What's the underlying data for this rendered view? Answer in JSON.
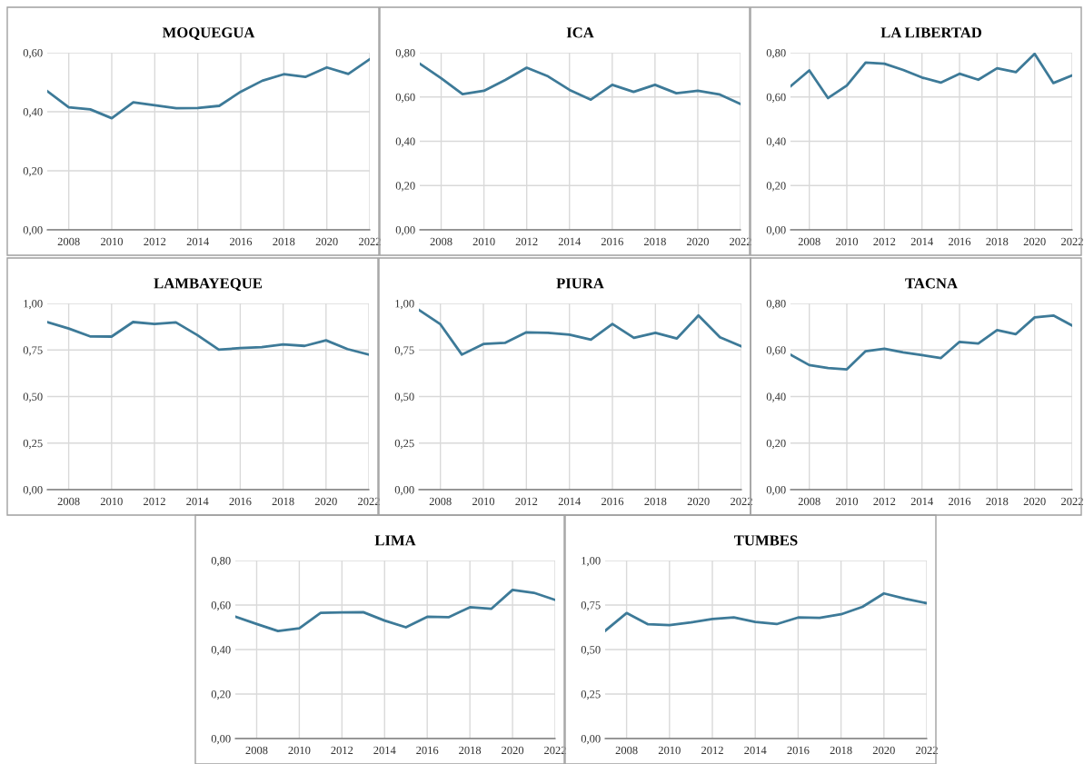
{
  "chart_data": [
    {
      "type": "line",
      "title": "MOQUEGUA",
      "x": [
        2007,
        2008,
        2009,
        2010,
        2011,
        2012,
        2013,
        2014,
        2015,
        2016,
        2017,
        2018,
        2019,
        2020,
        2021,
        2022
      ],
      "series": [
        {
          "color": "#3d7a98",
          "values": [
            0.47,
            0.415,
            0.408,
            0.378,
            0.432,
            0.422,
            0.412,
            0.413,
            0.42,
            0.468,
            0.505,
            0.527,
            0.518,
            0.55,
            0.528,
            0.578
          ]
        }
      ],
      "xlim": [
        2007,
        2022
      ],
      "xticks": [
        2008,
        2010,
        2012,
        2014,
        2016,
        2018,
        2020,
        2022
      ],
      "ylim": [
        0,
        0.6
      ],
      "yticks": [
        {
          "value": 0,
          "label": "0,00"
        },
        {
          "value": 0.2,
          "label": "0,20"
        },
        {
          "value": 0.4,
          "label": "0,40"
        },
        {
          "value": 0.6,
          "label": "0,60"
        }
      ],
      "grid": true
    },
    {
      "type": "line",
      "title": "ICA",
      "x": [
        2007,
        2008,
        2009,
        2010,
        2011,
        2012,
        2013,
        2014,
        2015,
        2016,
        2017,
        2018,
        2019,
        2020,
        2021,
        2022
      ],
      "series": [
        {
          "color": "#3d7a98",
          "values": [
            0.75,
            0.685,
            0.613,
            0.628,
            0.677,
            0.732,
            0.693,
            0.632,
            0.588,
            0.655,
            0.623,
            0.655,
            0.617,
            0.628,
            0.612,
            0.568
          ]
        }
      ],
      "xlim": [
        2007,
        2022
      ],
      "xticks": [
        2008,
        2010,
        2012,
        2014,
        2016,
        2018,
        2020,
        2022
      ],
      "ylim": [
        0,
        0.8
      ],
      "yticks": [
        {
          "value": 0,
          "label": "0,00"
        },
        {
          "value": 0.2,
          "label": "0,20"
        },
        {
          "value": 0.4,
          "label": "0,40"
        },
        {
          "value": 0.6,
          "label": "0,60"
        },
        {
          "value": 0.8,
          "label": "0,80"
        }
      ],
      "grid": true
    },
    {
      "type": "line",
      "title": "LA LIBERTAD",
      "x": [
        2007,
        2008,
        2009,
        2010,
        2011,
        2012,
        2013,
        2014,
        2015,
        2016,
        2017,
        2018,
        2019,
        2020,
        2021,
        2022
      ],
      "series": [
        {
          "color": "#3d7a98",
          "values": [
            0.648,
            0.72,
            0.595,
            0.652,
            0.755,
            0.75,
            0.722,
            0.688,
            0.665,
            0.705,
            0.678,
            0.73,
            0.712,
            0.795,
            0.663,
            0.697
          ]
        }
      ],
      "xlim": [
        2007,
        2022
      ],
      "xticks": [
        2008,
        2010,
        2012,
        2014,
        2016,
        2018,
        2020,
        2022
      ],
      "ylim": [
        0,
        0.8
      ],
      "yticks": [
        {
          "value": 0,
          "label": "0,00"
        },
        {
          "value": 0.2,
          "label": "0,20"
        },
        {
          "value": 0.4,
          "label": "0,40"
        },
        {
          "value": 0.6,
          "label": "0,60"
        },
        {
          "value": 0.8,
          "label": "0,80"
        }
      ],
      "grid": true
    },
    {
      "type": "line",
      "title": "LAMBAYEQUE",
      "x": [
        2007,
        2008,
        2009,
        2010,
        2011,
        2012,
        2013,
        2014,
        2015,
        2016,
        2017,
        2018,
        2019,
        2020,
        2021,
        2022
      ],
      "series": [
        {
          "color": "#3d7a98",
          "values": [
            0.9,
            0.865,
            0.823,
            0.822,
            0.9,
            0.89,
            0.898,
            0.83,
            0.752,
            0.76,
            0.765,
            0.78,
            0.772,
            0.802,
            0.755,
            0.725
          ]
        }
      ],
      "xlim": [
        2007,
        2022
      ],
      "xticks": [
        2008,
        2010,
        2012,
        2014,
        2016,
        2018,
        2020,
        2022
      ],
      "ylim": [
        0,
        1
      ],
      "yticks": [
        {
          "value": 0,
          "label": "0,00"
        },
        {
          "value": 0.25,
          "label": "0,25"
        },
        {
          "value": 0.5,
          "label": "0,50"
        },
        {
          "value": 0.75,
          "label": "0,75"
        },
        {
          "value": 1,
          "label": "1,00"
        }
      ],
      "grid": true
    },
    {
      "type": "line",
      "title": "PIURA",
      "x": [
        2007,
        2008,
        2009,
        2010,
        2011,
        2012,
        2013,
        2014,
        2015,
        2016,
        2017,
        2018,
        2019,
        2020,
        2021,
        2022
      ],
      "series": [
        {
          "color": "#3d7a98",
          "values": [
            0.965,
            0.888,
            0.725,
            0.782,
            0.788,
            0.845,
            0.842,
            0.832,
            0.805,
            0.89,
            0.815,
            0.842,
            0.812,
            0.935,
            0.818,
            0.77
          ]
        }
      ],
      "xlim": [
        2007,
        2022
      ],
      "xticks": [
        2008,
        2010,
        2012,
        2014,
        2016,
        2018,
        2020,
        2022
      ],
      "ylim": [
        0,
        1
      ],
      "yticks": [
        {
          "value": 0,
          "label": "0,00"
        },
        {
          "value": 0.25,
          "label": "0,25"
        },
        {
          "value": 0.5,
          "label": "0,50"
        },
        {
          "value": 0.75,
          "label": "0,75"
        },
        {
          "value": 1,
          "label": "1,00"
        }
      ],
      "grid": true
    },
    {
      "type": "line",
      "title": "TACNA",
      "x": [
        2007,
        2008,
        2009,
        2010,
        2011,
        2012,
        2013,
        2014,
        2015,
        2016,
        2017,
        2018,
        2019,
        2020,
        2021,
        2022
      ],
      "series": [
        {
          "color": "#3d7a98",
          "values": [
            0.58,
            0.535,
            0.522,
            0.517,
            0.595,
            0.605,
            0.59,
            0.578,
            0.565,
            0.635,
            0.628,
            0.685,
            0.668,
            0.74,
            0.748,
            0.705
          ]
        }
      ],
      "xlim": [
        2007,
        2022
      ],
      "xticks": [
        2008,
        2010,
        2012,
        2014,
        2016,
        2018,
        2020,
        2022
      ],
      "ylim": [
        0,
        0.8
      ],
      "yticks": [
        {
          "value": 0,
          "label": "0,00"
        },
        {
          "value": 0.2,
          "label": "0,20"
        },
        {
          "value": 0.4,
          "label": "0,40"
        },
        {
          "value": 0.6,
          "label": "0,60"
        },
        {
          "value": 0.8,
          "label": "0,80"
        }
      ],
      "grid": true
    },
    {
      "type": "line",
      "title": "LIMA",
      "x": [
        2007,
        2008,
        2009,
        2010,
        2011,
        2012,
        2013,
        2014,
        2015,
        2016,
        2017,
        2018,
        2019,
        2020,
        2021,
        2022
      ],
      "series": [
        {
          "color": "#3d7a98",
          "values": [
            0.548,
            0.515,
            0.483,
            0.495,
            0.565,
            0.567,
            0.568,
            0.53,
            0.5,
            0.547,
            0.545,
            0.59,
            0.583,
            0.668,
            0.655,
            0.623
          ]
        }
      ],
      "xlim": [
        2007,
        2022
      ],
      "xticks": [
        2008,
        2010,
        2012,
        2014,
        2016,
        2018,
        2020,
        2022
      ],
      "ylim": [
        0,
        0.8
      ],
      "yticks": [
        {
          "value": 0,
          "label": "0,00"
        },
        {
          "value": 0.2,
          "label": "0,20"
        },
        {
          "value": 0.4,
          "label": "0,40"
        },
        {
          "value": 0.6,
          "label": "0,60"
        },
        {
          "value": 0.8,
          "label": "0,80"
        }
      ],
      "grid": true
    },
    {
      "type": "line",
      "title": "TUMBES",
      "x": [
        2007,
        2008,
        2009,
        2010,
        2011,
        2012,
        2013,
        2014,
        2015,
        2016,
        2017,
        2018,
        2019,
        2020,
        2021,
        2022
      ],
      "series": [
        {
          "color": "#3d7a98",
          "values": [
            0.605,
            0.705,
            0.642,
            0.637,
            0.652,
            0.672,
            0.68,
            0.655,
            0.643,
            0.68,
            0.678,
            0.698,
            0.74,
            0.815,
            0.785,
            0.76
          ]
        }
      ],
      "xlim": [
        2007,
        2022
      ],
      "xticks": [
        2008,
        2010,
        2012,
        2014,
        2016,
        2018,
        2020,
        2022
      ],
      "ylim": [
        0,
        1
      ],
      "yticks": [
        {
          "value": 0,
          "label": "0,00"
        },
        {
          "value": 0.25,
          "label": "0,25"
        },
        {
          "value": 0.5,
          "label": "0,50"
        },
        {
          "value": 0.75,
          "label": "0,75"
        },
        {
          "value": 1,
          "label": "1,00"
        }
      ],
      "grid": true
    }
  ]
}
